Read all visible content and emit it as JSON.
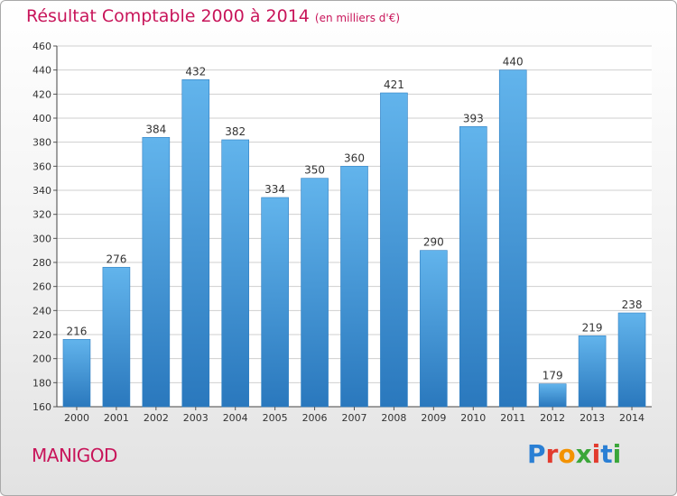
{
  "header": {
    "title": "Résultat Comptable 2000 à 2014",
    "unit": "(en milliers d'€)"
  },
  "footer": {
    "commune": "MANIGOD",
    "logo": "Proxiti",
    "logo_colors": [
      "#2a7fd4",
      "#e23b2e",
      "#f39200",
      "#3aa639",
      "#e23b2e",
      "#2a7fd4",
      "#3aa639"
    ]
  },
  "colors": {
    "accent": "#c8155a",
    "bar_top": "#62b4ec",
    "bar_bottom": "#2a78bd",
    "grid": "#cfcfcf"
  },
  "chart_data": {
    "type": "bar",
    "categories": [
      "2000",
      "2001",
      "2002",
      "2003",
      "2004",
      "2005",
      "2006",
      "2007",
      "2008",
      "2009",
      "2010",
      "2011",
      "2012",
      "2013",
      "2014"
    ],
    "values": [
      216,
      276,
      384,
      432,
      382,
      334,
      350,
      360,
      421,
      290,
      393,
      440,
      179,
      219,
      238
    ],
    "title": "Résultat Comptable 2000 à 2014",
    "xlabel": "",
    "ylabel": "",
    "ylim": [
      160,
      460
    ],
    "yticks": [
      160,
      180,
      200,
      220,
      240,
      260,
      280,
      300,
      320,
      340,
      360,
      380,
      400,
      420,
      440,
      460
    ],
    "grid": true,
    "data_labels": true
  }
}
